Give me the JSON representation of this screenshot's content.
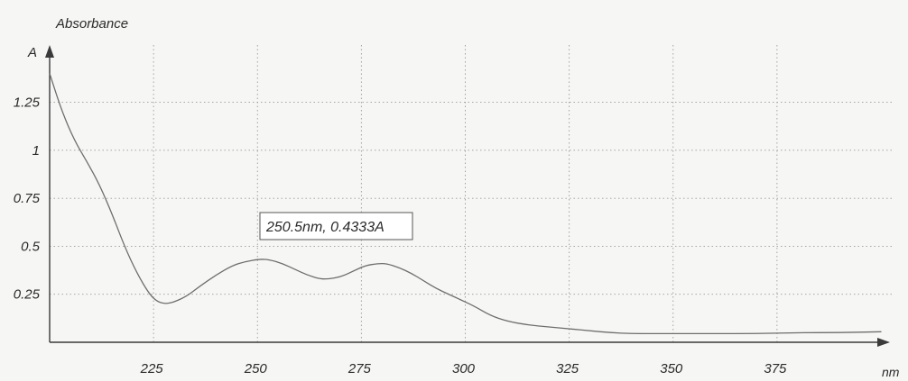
{
  "chart_data": {
    "type": "line",
    "ylabel": "Absorbance",
    "y_unit": "A",
    "x_unit": "nm",
    "xlim": [
      200,
      400
    ],
    "ylim": [
      0,
      1.37
    ],
    "x_ticks": [
      225,
      250,
      275,
      300,
      325,
      350,
      375
    ],
    "y_ticks": [
      0.25,
      0.5,
      0.75,
      1,
      1.25
    ],
    "grid": true,
    "series": [
      {
        "x": [
          200,
          203,
          206,
          209,
          212,
          215,
          218,
          221,
          224,
          226,
          228,
          230,
          233,
          236,
          240,
          244,
          247,
          250.5,
          253,
          256,
          259,
          262,
          265,
          267,
          270,
          273,
          276,
          279,
          281,
          284,
          287,
          290,
          293,
          296,
          299,
          302,
          306,
          310,
          315,
          320,
          325,
          330,
          335,
          340,
          345,
          350,
          360,
          370,
          380,
          390,
          400
        ],
        "y": [
          1.4,
          1.2,
          1.05,
          0.94,
          0.82,
          0.67,
          0.5,
          0.36,
          0.25,
          0.21,
          0.2,
          0.21,
          0.24,
          0.29,
          0.35,
          0.4,
          0.42,
          0.4333,
          0.43,
          0.41,
          0.38,
          0.35,
          0.33,
          0.33,
          0.34,
          0.37,
          0.4,
          0.41,
          0.41,
          0.39,
          0.36,
          0.32,
          0.28,
          0.25,
          0.22,
          0.19,
          0.14,
          0.11,
          0.09,
          0.08,
          0.07,
          0.06,
          0.05,
          0.045,
          0.045,
          0.045,
          0.045,
          0.045,
          0.05,
          0.05,
          0.055
        ]
      }
    ],
    "annotation": {
      "text": "250.5nm, 0.4333A",
      "x": 250.5,
      "y": 0.4333
    }
  }
}
